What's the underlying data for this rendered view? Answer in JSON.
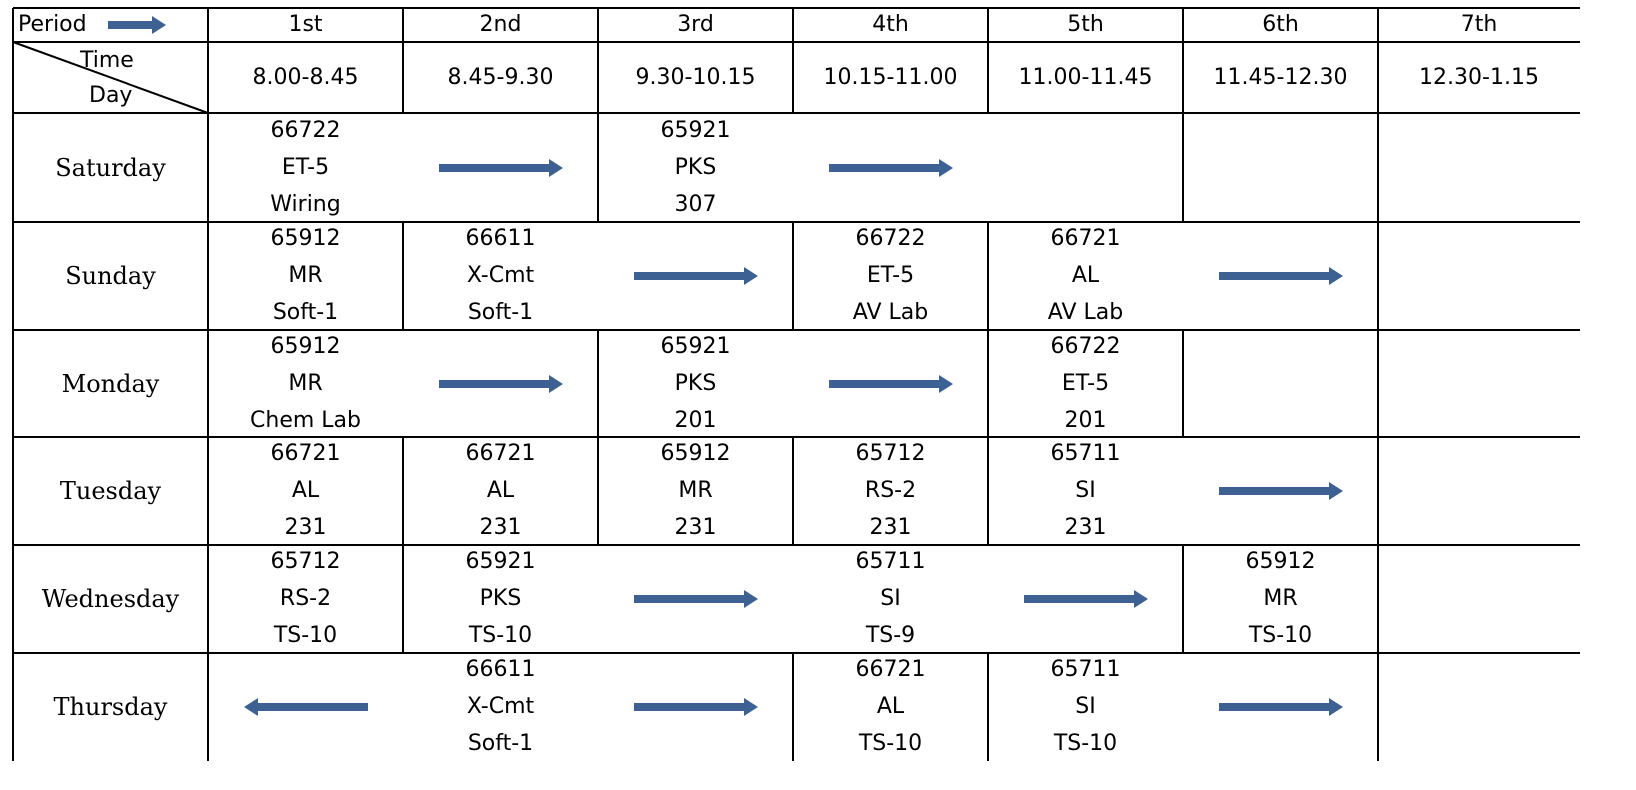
{
  "header": {
    "period_label": "Period",
    "time_label": "Time",
    "day_label": "Day",
    "periods": [
      "1st",
      "2nd",
      "3rd",
      "4th",
      "5th",
      "6th",
      "7th"
    ],
    "times": [
      "8.00-8.45",
      "8.45-9.30",
      "9.30-10.15",
      "10.15-11.00",
      "11.00-11.45",
      "11.45-12.30",
      "12.30-1.15"
    ]
  },
  "arrow_color": "#3c6192",
  "rows": [
    {
      "day": "Saturday",
      "cells": [
        {
          "col": 0,
          "lines": [
            "66722",
            "ET-5",
            "Wiring"
          ]
        },
        {
          "col": 2,
          "lines": [
            "65921",
            "PKS",
            "307"
          ]
        }
      ]
    },
    {
      "day": "Sunday",
      "cells": [
        {
          "col": 0,
          "lines": [
            "65912",
            "MR",
            "Soft-1"
          ]
        },
        {
          "col": 1,
          "lines": [
            "66611",
            "X-Cmt",
            "Soft-1"
          ]
        },
        {
          "col": 3,
          "lines": [
            "66722",
            "ET-5",
            "AV Lab"
          ]
        },
        {
          "col": 4,
          "lines": [
            "66721",
            "AL",
            "AV Lab"
          ]
        }
      ]
    },
    {
      "day": "Monday",
      "cells": [
        {
          "col": 0,
          "lines": [
            "65912",
            "MR",
            "Chem Lab"
          ]
        },
        {
          "col": 2,
          "lines": [
            "65921",
            "PKS",
            "201"
          ]
        },
        {
          "col": 4,
          "lines": [
            "66722",
            "ET-5",
            "201"
          ]
        }
      ]
    },
    {
      "day": "Tuesday",
      "cells": [
        {
          "col": 0,
          "lines": [
            "66721",
            "AL",
            "231"
          ]
        },
        {
          "col": 1,
          "lines": [
            "66721",
            "AL",
            "231"
          ]
        },
        {
          "col": 2,
          "lines": [
            "65912",
            "MR",
            "231"
          ]
        },
        {
          "col": 3,
          "lines": [
            "65712",
            "RS-2",
            "231"
          ]
        },
        {
          "col": 4,
          "lines": [
            "65711",
            "SI",
            "231"
          ]
        }
      ]
    },
    {
      "day": "Wednesday",
      "cells": [
        {
          "col": 0,
          "lines": [
            "65712",
            "RS-2",
            "TS-10"
          ]
        },
        {
          "col": 1,
          "lines": [
            "65921",
            "PKS",
            "TS-10"
          ]
        },
        {
          "col": 3,
          "lines": [
            "65711",
            "SI",
            "TS-9"
          ]
        },
        {
          "col": 5,
          "lines": [
            "65912",
            "MR",
            "TS-10"
          ]
        }
      ]
    },
    {
      "day": "Thursday",
      "cells": [
        {
          "col": 1,
          "lines": [
            "66611",
            "X-Cmt",
            "Soft-1"
          ]
        },
        {
          "col": 3,
          "lines": [
            "66721",
            "AL",
            "TS-10"
          ]
        },
        {
          "col": 4,
          "lines": [
            "65711",
            "SI",
            "TS-10"
          ]
        }
      ]
    }
  ]
}
